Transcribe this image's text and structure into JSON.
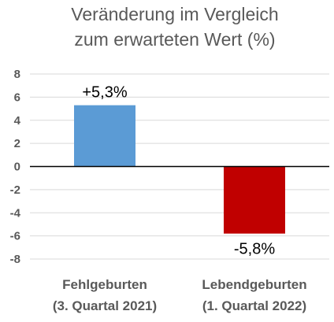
{
  "chart_data": {
    "type": "bar",
    "title_lines": [
      "Veränderung im Vergleich",
      "zum erwarteten Wert (%)"
    ],
    "categories": [
      [
        "Fehlgeburten",
        "(3. Quartal 2021)"
      ],
      [
        "Lebendgeburten",
        "(1. Quartal 2022)"
      ]
    ],
    "values": [
      5.3,
      -5.8
    ],
    "data_labels": [
      "+5,3%",
      "-5,8%"
    ],
    "bar_colors": [
      "#5b9bd5",
      "#c00000"
    ],
    "ylim": [
      -8,
      8
    ],
    "yticks": [
      8,
      6,
      4,
      2,
      0,
      -2,
      -4,
      -6,
      -8
    ],
    "ytick_labels": [
      "8",
      "6",
      "4",
      "2",
      "0",
      "-2",
      "-4",
      "-6",
      "-8"
    ],
    "grid": true,
    "legend": "none"
  }
}
